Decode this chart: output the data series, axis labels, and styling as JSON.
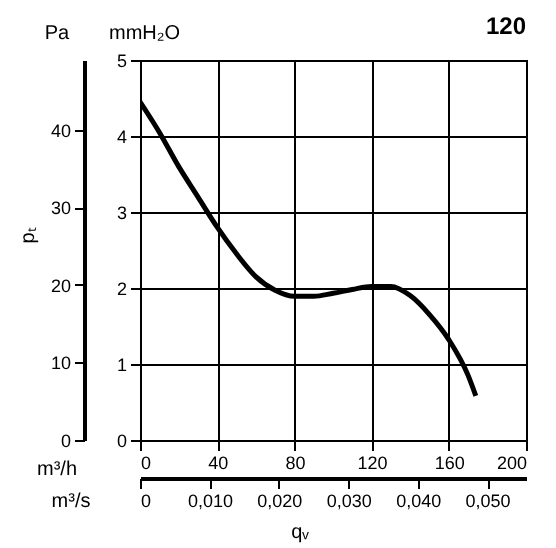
{
  "chart_data": {
    "type": "line",
    "title": "120",
    "xlabel": "m³/h",
    "ylabel": "mmH₂O",
    "y2label": "Pa",
    "x2label": "m³/s",
    "annotations": [
      "qᵥ",
      "pₜ"
    ],
    "x": [
      0,
      10,
      20,
      30,
      40,
      50,
      60,
      70,
      80,
      90,
      100,
      110,
      120,
      130,
      140,
      150,
      160,
      170,
      174
    ],
    "series": [
      {
        "color": "#000000",
        "values": [
          4.45,
          4.05,
          3.6,
          3.2,
          2.8,
          2.45,
          2.15,
          1.97,
          1.89,
          1.89,
          1.93,
          1.98,
          2.02,
          2.02,
          1.9,
          1.65,
          1.32,
          0.85,
          0.58
        ]
      }
    ],
    "xlim": [
      0,
      200
    ],
    "xticks": [
      0,
      40,
      80,
      120,
      160,
      200
    ],
    "ylim": [
      0,
      5
    ],
    "yticks": [
      0,
      1,
      2,
      3,
      4,
      5
    ],
    "y2lim": [
      0,
      49
    ],
    "y2ticks": [
      0,
      10,
      20,
      30,
      40
    ],
    "x2lim": [
      0,
      0.0556
    ],
    "x2ticks": [
      {
        "value": 0,
        "label": "0"
      },
      {
        "value": 0.01,
        "label": "0,010"
      },
      {
        "value": 0.02,
        "label": "0,020"
      },
      {
        "value": 0.03,
        "label": "0,030"
      },
      {
        "value": 0.04,
        "label": "0,040"
      },
      {
        "value": 0.05,
        "label": "0,050"
      }
    ],
    "grid": true,
    "line_style": "solid",
    "marker": "none"
  }
}
